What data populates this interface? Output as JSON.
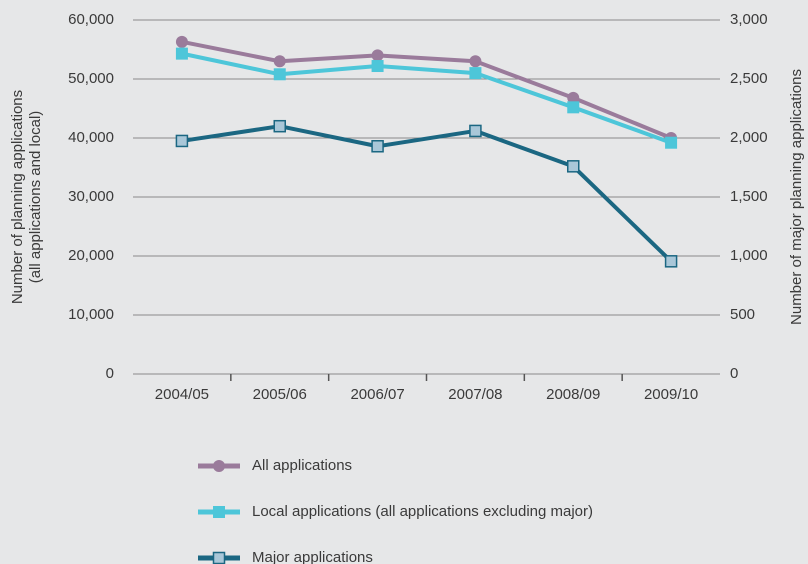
{
  "chart_data": {
    "type": "line",
    "ylabel": [
      "Number of planning applications",
      "(all applications and local)"
    ],
    "y2label": "Number of major planning applications",
    "categories": [
      "2004/05",
      "2005/06",
      "2006/07",
      "2007/08",
      "2008/09",
      "2009/10"
    ],
    "series": [
      {
        "name": "All applications",
        "color": "#9a7b9b",
        "marker": "circle",
        "values": [
          56300,
          53000,
          54000,
          53000,
          46800,
          40000
        ]
      },
      {
        "name": "Local applications (all applications excluding major)",
        "color": "#4dc6d9",
        "marker": "square",
        "values": [
          54300,
          50800,
          52200,
          51000,
          45200,
          39200
        ]
      },
      {
        "name": "Major applications",
        "color": "#1b6782",
        "marker": "hollow-square",
        "marker_fill": "#a9c7d8",
        "axis": "y2",
        "values": [
          1975,
          2100,
          1930,
          2060,
          1760,
          955
        ]
      }
    ],
    "ylim": [
      0,
      60000
    ],
    "yticks": [
      0,
      {
        "value": 10000,
        "label": "10,000"
      },
      {
        "value": 20000,
        "label": "20,000"
      },
      {
        "value": 30000,
        "label": "30,000"
      },
      {
        "value": 40000,
        "label": "40,000"
      },
      {
        "value": 50000,
        "label": "50,000"
      },
      {
        "value": 60000,
        "label": "60,000"
      }
    ],
    "y2lim": [
      0,
      3000
    ],
    "y2ticks": [
      0,
      500,
      {
        "value": 1000,
        "label": "1,000"
      },
      {
        "value": 1500,
        "label": "1,500"
      },
      {
        "value": 2000,
        "label": "2,000"
      },
      {
        "value": 2500,
        "label": "2,500"
      },
      {
        "value": 3000,
        "label": "3,000"
      }
    ],
    "grid": true
  }
}
